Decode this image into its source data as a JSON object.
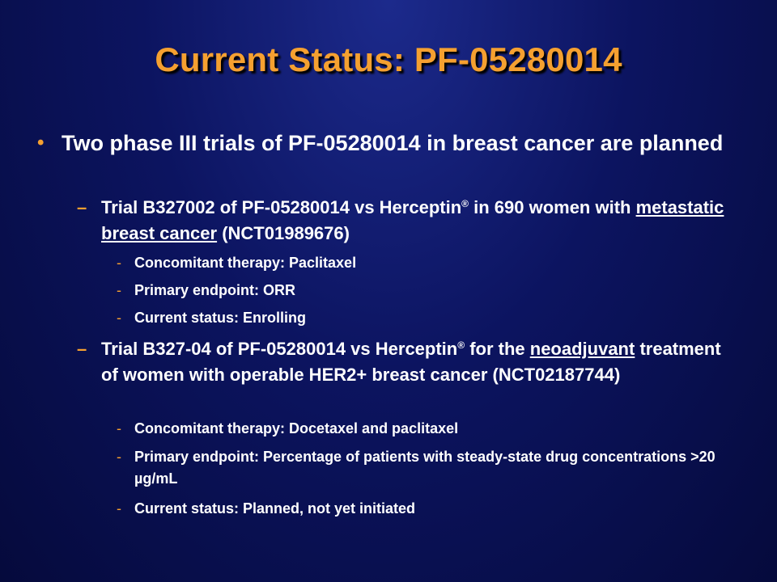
{
  "title": "Current Status: PF-05280014",
  "bullet_glyph": "•",
  "dash_glyph": "–",
  "small_dash_glyph": "-",
  "main_point": "Two phase III trials of PF-05280014 in breast cancer are planned",
  "trial1": {
    "text_a": "Trial B327002 of PF-05280014 vs Herceptin",
    "reg": "®",
    "text_b": " in 690 women with ",
    "underlined": "metastatic breast cancer",
    "text_c": " (NCT01989676)",
    "details": [
      "Concomitant therapy: Paclitaxel",
      "Primary endpoint: ORR",
      "Current status: Enrolling"
    ]
  },
  "trial2": {
    "text_a": "Trial B327-04 of PF-05280014 vs Herceptin",
    "reg": "®",
    "text_b": " for the ",
    "underlined": "neoadjuvant",
    "text_c": " treatment of women with operable HER2+ breast cancer (NCT02187744)",
    "details": [
      "Concomitant therapy: Docetaxel and paclitaxel",
      "Primary endpoint: Percentage of patients with steady-state drug concentrations >20 µg/mL",
      "Current status: Planned, not yet initiated"
    ]
  }
}
